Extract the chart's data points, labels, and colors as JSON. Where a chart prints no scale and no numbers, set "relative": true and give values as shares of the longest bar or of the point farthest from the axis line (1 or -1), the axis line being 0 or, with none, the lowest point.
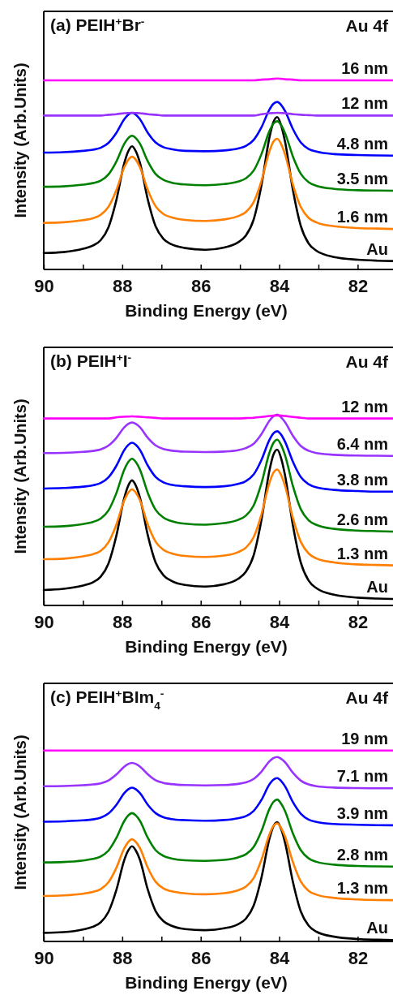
{
  "chart_data": [
    {
      "type": "line",
      "title": "(a) PEIH$^{+}$Br$^{-}$",
      "annotations": [
        "Au 4f"
      ],
      "xlabel": "Binding Energy (eV)",
      "ylabel": "Intensity (Arb.Units)",
      "relative": true,
      "xlim": [
        90,
        81.1
      ],
      "xticks": [
        90,
        {
          "value": 89,
          "label": null
        },
        88,
        {
          "value": 87,
          "label": null
        },
        86,
        {
          "value": 85,
          "label": null
        },
        84,
        {
          "value": 83,
          "label": null
        },
        82
      ],
      "x": [
        90,
        89.5,
        89,
        88.75,
        88.55,
        88.35,
        88.15,
        87.95,
        87.85,
        87.75,
        87.65,
        87.55,
        87.35,
        87.15,
        86.95,
        86.75,
        86.4,
        85.9,
        85.4,
        85.05,
        84.85,
        84.65,
        84.45,
        84.25,
        84.15,
        84.05,
        83.95,
        83.85,
        83.65,
        83.45,
        83.25,
        83.05,
        82.6,
        82,
        81.5,
        81.1
      ],
      "series": [
        {
          "name": "Au",
          "color": "#000000",
          "values": [
            0.086,
            0.091,
            0.108,
            0.125,
            0.153,
            0.221,
            0.363,
            0.555,
            0.617,
            0.645,
            0.617,
            0.559,
            0.367,
            0.226,
            0.16,
            0.132,
            0.112,
            0.103,
            0.115,
            0.142,
            0.177,
            0.262,
            0.443,
            0.69,
            0.77,
            0.798,
            0.754,
            0.668,
            0.415,
            0.228,
            0.136,
            0.098,
            0.065,
            0.051,
            0.046,
            0.044
          ]
        },
        {
          "name": "1.6 nm",
          "color": "#ff7f00",
          "values": [
            0.244,
            0.247,
            0.258,
            0.268,
            0.286,
            0.328,
            0.415,
            0.534,
            0.573,
            0.59,
            0.573,
            0.536,
            0.417,
            0.331,
            0.29,
            0.273,
            0.259,
            0.254,
            0.262,
            0.279,
            0.301,
            0.353,
            0.465,
            0.618,
            0.668,
            0.684,
            0.656,
            0.602,
            0.444,
            0.327,
            0.27,
            0.246,
            0.226,
            0.217,
            0.214,
            0.212
          ]
        },
        {
          "name": "3.5 nm",
          "color": "#008000",
          "values": [
            0.433,
            0.435,
            0.444,
            0.452,
            0.465,
            0.498,
            0.565,
            0.657,
            0.687,
            0.7,
            0.687,
            0.659,
            0.567,
            0.5,
            0.469,
            0.455,
            0.445,
            0.441,
            0.447,
            0.46,
            0.477,
            0.518,
            0.605,
            0.724,
            0.763,
            0.776,
            0.755,
            0.713,
            0.591,
            0.501,
            0.457,
            0.438,
            0.422,
            0.415,
            0.413,
            0.412
          ]
        },
        {
          "name": "4.8 nm",
          "color": "#0000ff",
          "values": [
            0.612,
            0.614,
            0.621,
            0.627,
            0.637,
            0.663,
            0.715,
            0.786,
            0.81,
            0.82,
            0.81,
            0.787,
            0.716,
            0.665,
            0.64,
            0.63,
            0.621,
            0.619,
            0.623,
            0.633,
            0.646,
            0.678,
            0.745,
            0.837,
            0.867,
            0.877,
            0.861,
            0.829,
            0.735,
            0.665,
            0.631,
            0.617,
            0.604,
            0.599,
            0.597,
            0.596
          ]
        },
        {
          "name": "12 nm",
          "color": "#9933ff",
          "values": [
            0.806,
            0.806,
            0.806,
            0.806,
            0.806,
            0.81,
            0.813,
            0.818,
            0.819,
            0.82,
            0.819,
            0.818,
            0.813,
            0.81,
            0.806,
            0.806,
            0.806,
            0.806,
            0.806,
            0.806,
            0.806,
            0.806,
            0.813,
            0.818,
            0.819,
            0.82,
            0.819,
            0.818,
            0.813,
            0.81,
            0.808,
            0.806,
            0.806,
            0.806,
            0.806,
            0.806
          ]
        },
        {
          "name": "16 nm",
          "color": "#ff00ff",
          "values": [
            0.99,
            0.99,
            0.99,
            0.99,
            0.99,
            0.99,
            0.99,
            0.99,
            0.99,
            0.99,
            0.99,
            0.99,
            0.99,
            0.99,
            0.99,
            0.99,
            0.99,
            0.99,
            0.99,
            0.99,
            0.99,
            0.99,
            0.994,
            0.996,
            0.998,
            1,
            0.998,
            0.996,
            0.994,
            0.99,
            0.99,
            0.99,
            0.99,
            0.99,
            0.99,
            0.99
          ]
        }
      ]
    },
    {
      "type": "line",
      "title": "(b) PEIH$^{+}$I$^{-}$",
      "annotations": [
        "Au 4f"
      ],
      "xlabel": "Binding Energy (eV)",
      "ylabel": "Intensity (Arb.Units)",
      "relative": true,
      "xlim": [
        90,
        81.1
      ],
      "xticks": [
        90,
        {
          "value": 89,
          "label": null
        },
        88,
        {
          "value": 87,
          "label": null
        },
        86,
        {
          "value": 85,
          "label": null
        },
        84,
        {
          "value": 83,
          "label": null
        },
        82
      ],
      "x": [
        90,
        89.5,
        89,
        88.75,
        88.55,
        88.35,
        88.15,
        87.95,
        87.85,
        87.75,
        87.65,
        87.55,
        87.35,
        87.15,
        86.95,
        86.75,
        86.4,
        85.9,
        85.4,
        85.05,
        84.85,
        84.65,
        84.45,
        84.25,
        84.15,
        84.05,
        83.95,
        83.85,
        83.65,
        83.45,
        83.25,
        83.05,
        82.6,
        82,
        81.5,
        81.1
      ],
      "series": [
        {
          "name": "Au",
          "color": "#000000",
          "values": [
            0.081,
            0.087,
            0.104,
            0.121,
            0.15,
            0.22,
            0.365,
            0.562,
            0.626,
            0.655,
            0.626,
            0.566,
            0.369,
            0.225,
            0.158,
            0.129,
            0.107,
            0.099,
            0.111,
            0.139,
            0.176,
            0.263,
            0.45,
            0.705,
            0.788,
            0.816,
            0.77,
            0.68,
            0.419,
            0.225,
            0.13,
            0.09,
            0.056,
            0.041,
            0.036,
            0.034
          ]
        },
        {
          "name": "1.3 nm",
          "color": "#ff7f00",
          "values": [
            0.242,
            0.245,
            0.257,
            0.268,
            0.286,
            0.331,
            0.423,
            0.549,
            0.59,
            0.608,
            0.59,
            0.551,
            0.425,
            0.334,
            0.291,
            0.273,
            0.259,
            0.254,
            0.261,
            0.279,
            0.302,
            0.358,
            0.478,
            0.641,
            0.694,
            0.712,
            0.682,
            0.625,
            0.457,
            0.333,
            0.272,
            0.246,
            0.225,
            0.215,
            0.212,
            0.21
          ]
        },
        {
          "name": "2.6 nm",
          "color": "#008000",
          "values": [
            0.412,
            0.415,
            0.426,
            0.437,
            0.455,
            0.498,
            0.588,
            0.71,
            0.75,
            0.768,
            0.75,
            0.712,
            0.59,
            0.501,
            0.46,
            0.442,
            0.428,
            0.423,
            0.431,
            0.448,
            0.47,
            0.524,
            0.641,
            0.799,
            0.85,
            0.868,
            0.84,
            0.786,
            0.625,
            0.504,
            0.446,
            0.422,
            0.401,
            0.392,
            0.389,
            0.387
          ]
        },
        {
          "name": "3.8 nm",
          "color": "#0000ff",
          "values": [
            0.612,
            0.615,
            0.622,
            0.629,
            0.641,
            0.671,
            0.731,
            0.813,
            0.84,
            0.852,
            0.84,
            0.815,
            0.733,
            0.673,
            0.644,
            0.632,
            0.624,
            0.62,
            0.624,
            0.636,
            0.651,
            0.686,
            0.763,
            0.866,
            0.9,
            0.912,
            0.894,
            0.857,
            0.752,
            0.672,
            0.635,
            0.618,
            0.605,
            0.599,
            0.596,
            0.596
          ]
        },
        {
          "name": "6.4 nm",
          "color": "#9933ff",
          "values": [
            0.798,
            0.799,
            0.804,
            0.809,
            0.817,
            0.837,
            0.877,
            0.932,
            0.95,
            0.958,
            0.95,
            0.933,
            0.878,
            0.838,
            0.819,
            0.811,
            0.805,
            0.803,
            0.806,
            0.813,
            0.824,
            0.847,
            0.898,
            0.967,
            0.99,
            1,
            0.984,
            0.959,
            0.888,
            0.835,
            0.81,
            0.798,
            0.789,
            0.785,
            0.784,
            0.783
          ]
        },
        {
          "name": "12 nm",
          "color": "#ff00ff",
          "values": [
            0.979,
            0.979,
            0.979,
            0.979,
            0.979,
            0.979,
            0.985,
            0.988,
            0.989,
            0.99,
            0.989,
            0.988,
            0.985,
            0.982,
            0.979,
            0.979,
            0.979,
            0.979,
            0.979,
            0.979,
            0.981,
            0.983,
            0.987,
            0.992,
            0.994,
            0.995,
            0.994,
            0.992,
            0.987,
            0.983,
            0.979,
            0.979,
            0.979,
            0.979,
            0.979,
            0.979
          ]
        }
      ]
    },
    {
      "type": "line",
      "title": "(c) PEIH$^{+}$BIm$_{4}$$^{-}$",
      "annotations": [
        "Au 4f"
      ],
      "xlabel": "Binding Energy (eV)",
      "ylabel": "Intensity (Arb.Units)",
      "relative": true,
      "xlim": [
        90,
        81.1
      ],
      "xticks": [
        90,
        {
          "value": 89,
          "label": null
        },
        88,
        {
          "value": 87,
          "label": null
        },
        86,
        {
          "value": 85,
          "label": null
        },
        84,
        {
          "value": 83,
          "label": null
        },
        82
      ],
      "x": [
        90,
        89.5,
        89,
        88.75,
        88.55,
        88.35,
        88.15,
        87.95,
        87.85,
        87.75,
        87.65,
        87.55,
        87.35,
        87.15,
        86.95,
        86.75,
        86.4,
        85.9,
        85.4,
        85.05,
        84.85,
        84.65,
        84.45,
        84.25,
        84.15,
        84.05,
        83.95,
        83.85,
        83.65,
        83.45,
        83.25,
        83.05,
        82.6,
        82,
        81.5,
        81.1
      ],
      "series": [
        {
          "name": "Au",
          "color": "#000000",
          "values": [
            0.045,
            0.049,
            0.063,
            0.077,
            0.1,
            0.155,
            0.269,
            0.425,
            0.475,
            0.498,
            0.475,
            0.428,
            0.272,
            0.159,
            0.106,
            0.083,
            0.065,
            0.059,
            0.069,
            0.09,
            0.119,
            0.188,
            0.336,
            0.537,
            0.602,
            0.625,
            0.588,
            0.517,
            0.311,
            0.157,
            0.083,
            0.051,
            0.025,
            0.013,
            0.009,
            0.007
          ]
        },
        {
          "name": "1.3 nm",
          "color": "#ff7f00",
          "values": [
            0.238,
            0.241,
            0.25,
            0.259,
            0.274,
            0.31,
            0.385,
            0.487,
            0.52,
            0.535,
            0.52,
            0.489,
            0.387,
            0.313,
            0.278,
            0.263,
            0.252,
            0.247,
            0.253,
            0.268,
            0.287,
            0.332,
            0.429,
            0.56,
            0.603,
            0.618,
            0.594,
            0.549,
            0.415,
            0.314,
            0.265,
            0.245,
            0.228,
            0.22,
            0.217,
            0.216
          ]
        },
        {
          "name": "2.8 nm",
          "color": "#008000",
          "values": [
            0.414,
            0.416,
            0.424,
            0.432,
            0.445,
            0.476,
            0.542,
            0.63,
            0.659,
            0.672,
            0.659,
            0.632,
            0.543,
            0.478,
            0.448,
            0.435,
            0.425,
            0.422,
            0.427,
            0.44,
            0.456,
            0.495,
            0.579,
            0.693,
            0.73,
            0.743,
            0.721,
            0.682,
            0.565,
            0.478,
            0.435,
            0.417,
            0.402,
            0.395,
            0.393,
            0.392
          ]
        },
        {
          "name": "3.9 nm",
          "color": "#0000ff",
          "values": [
            0.627,
            0.629,
            0.634,
            0.639,
            0.648,
            0.67,
            0.715,
            0.776,
            0.796,
            0.805,
            0.796,
            0.777,
            0.716,
            0.672,
            0.65,
            0.641,
            0.635,
            0.632,
            0.636,
            0.645,
            0.656,
            0.684,
            0.742,
            0.822,
            0.847,
            0.855,
            0.84,
            0.812,
            0.729,
            0.669,
            0.638,
            0.626,
            0.615,
            0.611,
            0.609,
            0.608
          ]
        },
        {
          "name": "7.1 nm",
          "color": "#9933ff",
          "values": [
            0.813,
            0.814,
            0.818,
            0.822,
            0.828,
            0.843,
            0.874,
            0.915,
            0.929,
            0.935,
            0.929,
            0.916,
            0.875,
            0.844,
            0.83,
            0.824,
            0.819,
            0.817,
            0.819,
            0.825,
            0.833,
            0.851,
            0.89,
            0.943,
            0.96,
            0.966,
            0.956,
            0.938,
            0.883,
            0.842,
            0.822,
            0.813,
            0.806,
            0.803,
            0.802,
            0.802
          ]
        },
        {
          "name": "19 nm",
          "color": "#ff00ff",
          "values": [
            1,
            1,
            1,
            1,
            1,
            1,
            1,
            1,
            1,
            1,
            1,
            1,
            1,
            1,
            1,
            1,
            1,
            1,
            1,
            1,
            1,
            1,
            1,
            1,
            1,
            1,
            1,
            1,
            1,
            1,
            1,
            1,
            1,
            1,
            1,
            1
          ]
        }
      ]
    }
  ]
}
